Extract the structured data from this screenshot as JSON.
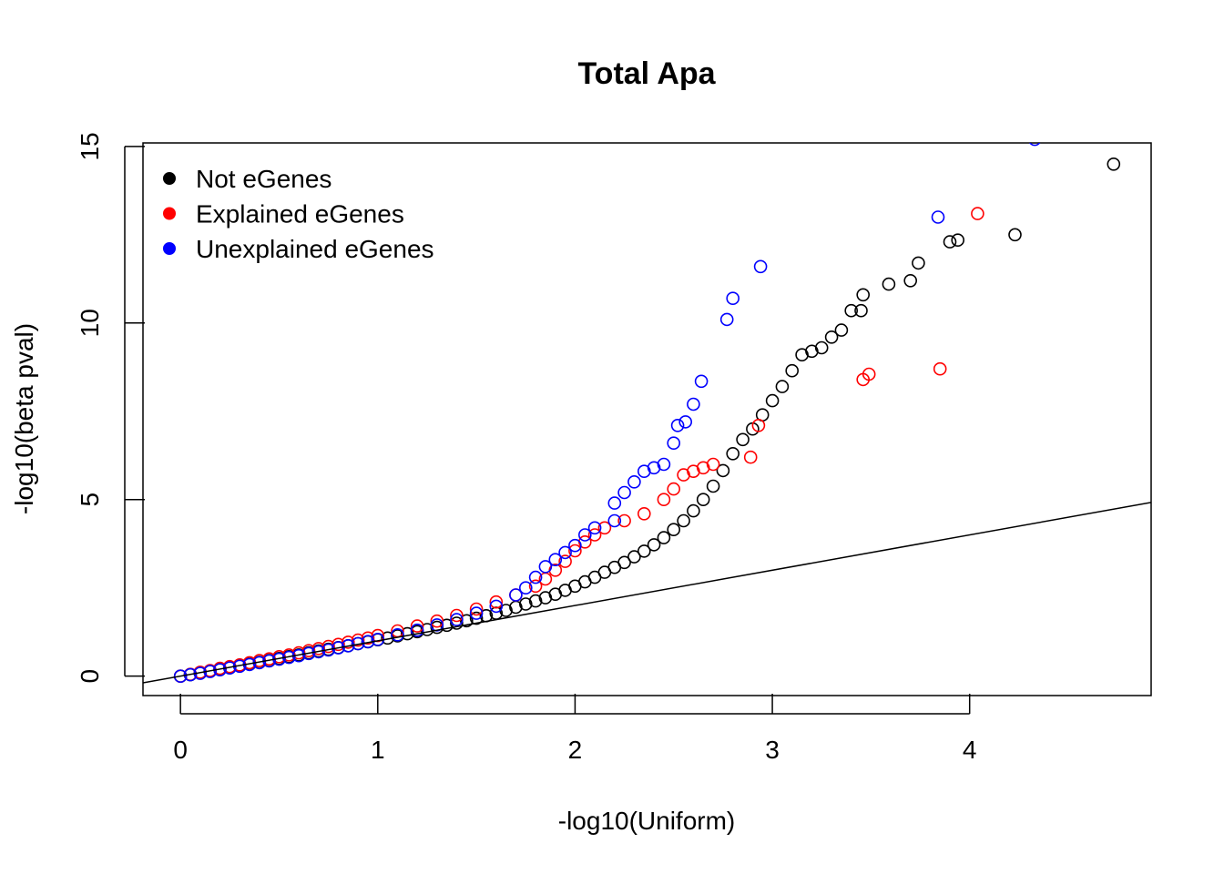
{
  "chart_data": {
    "type": "scatter",
    "title": "Total Apa",
    "xlabel": "-log10(Uniform)",
    "ylabel": "-log10(beta pval)",
    "xlim": [
      -0.19,
      4.92
    ],
    "ylim": [
      -0.55,
      15.1
    ],
    "x_ticks": [
      0,
      1,
      2,
      3,
      4
    ],
    "y_ticks": [
      0,
      5,
      10,
      15
    ],
    "x_tick_labels": [
      "0",
      "1",
      "2",
      "3",
      "4"
    ],
    "y_tick_labels": [
      "0",
      "5",
      "10",
      "15"
    ],
    "grid": false,
    "legend_position": "top-left",
    "reference_line": {
      "intercept": 0,
      "slope": 1,
      "color": "#000000"
    },
    "series": [
      {
        "name": "Not eGenes",
        "color": "#000000",
        "marker": "open-circle",
        "points": [
          [
            0.0,
            0.0
          ],
          [
            0.05,
            0.04
          ],
          [
            0.1,
            0.09
          ],
          [
            0.15,
            0.14
          ],
          [
            0.2,
            0.19
          ],
          [
            0.25,
            0.24
          ],
          [
            0.3,
            0.29
          ],
          [
            0.35,
            0.34
          ],
          [
            0.4,
            0.39
          ],
          [
            0.45,
            0.44
          ],
          [
            0.5,
            0.5
          ],
          [
            0.55,
            0.55
          ],
          [
            0.6,
            0.6
          ],
          [
            0.65,
            0.66
          ],
          [
            0.7,
            0.71
          ],
          [
            0.75,
            0.76
          ],
          [
            0.8,
            0.81
          ],
          [
            0.85,
            0.86
          ],
          [
            0.9,
            0.92
          ],
          [
            0.95,
            0.97
          ],
          [
            1.0,
            1.03
          ],
          [
            1.05,
            1.08
          ],
          [
            1.1,
            1.14
          ],
          [
            1.15,
            1.2
          ],
          [
            1.2,
            1.26
          ],
          [
            1.25,
            1.32
          ],
          [
            1.3,
            1.38
          ],
          [
            1.35,
            1.44
          ],
          [
            1.4,
            1.5
          ],
          [
            1.45,
            1.57
          ],
          [
            1.5,
            1.64
          ],
          [
            1.55,
            1.71
          ],
          [
            1.6,
            1.78
          ],
          [
            1.65,
            1.86
          ],
          [
            1.7,
            1.95
          ],
          [
            1.75,
            2.04
          ],
          [
            1.8,
            2.13
          ],
          [
            1.85,
            2.22
          ],
          [
            1.9,
            2.32
          ],
          [
            1.95,
            2.43
          ],
          [
            2.0,
            2.55
          ],
          [
            2.05,
            2.67
          ],
          [
            2.1,
            2.8
          ],
          [
            2.15,
            2.94
          ],
          [
            2.2,
            3.08
          ],
          [
            2.25,
            3.22
          ],
          [
            2.3,
            3.38
          ],
          [
            2.35,
            3.54
          ],
          [
            2.4,
            3.72
          ],
          [
            2.45,
            3.92
          ],
          [
            2.5,
            4.15
          ],
          [
            2.55,
            4.4
          ],
          [
            2.6,
            4.68
          ],
          [
            2.65,
            5.0
          ],
          [
            2.7,
            5.38
          ],
          [
            2.75,
            5.82
          ],
          [
            2.8,
            6.3
          ],
          [
            2.85,
            6.7
          ],
          [
            2.9,
            7.0
          ],
          [
            2.95,
            7.4
          ],
          [
            3.0,
            7.8
          ],
          [
            3.05,
            8.2
          ],
          [
            3.1,
            8.65
          ],
          [
            3.15,
            9.1
          ],
          [
            3.2,
            9.2
          ],
          [
            3.25,
            9.3
          ],
          [
            3.3,
            9.6
          ],
          [
            3.35,
            9.8
          ],
          [
            3.4,
            10.35
          ],
          [
            3.45,
            10.35
          ],
          [
            3.46,
            10.8
          ],
          [
            3.59,
            11.1
          ],
          [
            3.7,
            11.2
          ],
          [
            3.74,
            11.7
          ],
          [
            3.9,
            12.3
          ],
          [
            3.94,
            12.35
          ],
          [
            4.23,
            12.5
          ],
          [
            4.73,
            14.5
          ]
        ]
      },
      {
        "name": "Explained eGenes",
        "color": "#ff0000",
        "marker": "open-circle",
        "points": [
          [
            0.0,
            0.0
          ],
          [
            0.05,
            0.05
          ],
          [
            0.1,
            0.11
          ],
          [
            0.15,
            0.16
          ],
          [
            0.2,
            0.22
          ],
          [
            0.25,
            0.27
          ],
          [
            0.3,
            0.32
          ],
          [
            0.35,
            0.38
          ],
          [
            0.4,
            0.44
          ],
          [
            0.45,
            0.49
          ],
          [
            0.5,
            0.55
          ],
          [
            0.55,
            0.6
          ],
          [
            0.6,
            0.66
          ],
          [
            0.65,
            0.72
          ],
          [
            0.7,
            0.78
          ],
          [
            0.75,
            0.84
          ],
          [
            0.8,
            0.9
          ],
          [
            0.85,
            0.96
          ],
          [
            0.9,
            1.02
          ],
          [
            0.95,
            1.08
          ],
          [
            1.0,
            1.15
          ],
          [
            1.1,
            1.28
          ],
          [
            1.2,
            1.42
          ],
          [
            1.3,
            1.56
          ],
          [
            1.4,
            1.72
          ],
          [
            1.5,
            1.9
          ],
          [
            1.6,
            2.1
          ],
          [
            1.7,
            2.3
          ],
          [
            1.8,
            2.55
          ],
          [
            1.85,
            2.75
          ],
          [
            1.9,
            3.0
          ],
          [
            1.95,
            3.25
          ],
          [
            2.0,
            3.55
          ],
          [
            2.05,
            3.8
          ],
          [
            2.1,
            4.0
          ],
          [
            2.15,
            4.2
          ],
          [
            2.25,
            4.4
          ],
          [
            2.35,
            4.6
          ],
          [
            2.45,
            5.0
          ],
          [
            2.5,
            5.3
          ],
          [
            2.55,
            5.7
          ],
          [
            2.6,
            5.8
          ],
          [
            2.65,
            5.9
          ],
          [
            2.7,
            6.0
          ],
          [
            2.89,
            6.2
          ],
          [
            2.93,
            7.1
          ],
          [
            3.46,
            8.4
          ],
          [
            3.49,
            8.55
          ],
          [
            3.85,
            8.7
          ],
          [
            4.04,
            13.1
          ]
        ]
      },
      {
        "name": "Unexplained eGenes",
        "color": "#0000ff",
        "marker": "open-circle",
        "points": [
          [
            0.0,
            0.0
          ],
          [
            0.05,
            0.04
          ],
          [
            0.1,
            0.08
          ],
          [
            0.15,
            0.13
          ],
          [
            0.2,
            0.18
          ],
          [
            0.25,
            0.23
          ],
          [
            0.3,
            0.28
          ],
          [
            0.35,
            0.33
          ],
          [
            0.4,
            0.38
          ],
          [
            0.45,
            0.43
          ],
          [
            0.5,
            0.48
          ],
          [
            0.55,
            0.53
          ],
          [
            0.6,
            0.58
          ],
          [
            0.65,
            0.64
          ],
          [
            0.7,
            0.69
          ],
          [
            0.75,
            0.74
          ],
          [
            0.8,
            0.8
          ],
          [
            0.85,
            0.86
          ],
          [
            0.9,
            0.92
          ],
          [
            0.95,
            0.98
          ],
          [
            1.0,
            1.04
          ],
          [
            1.1,
            1.17
          ],
          [
            1.2,
            1.3
          ],
          [
            1.3,
            1.45
          ],
          [
            1.4,
            1.6
          ],
          [
            1.5,
            1.78
          ],
          [
            1.6,
            1.98
          ],
          [
            1.7,
            2.3
          ],
          [
            1.75,
            2.5
          ],
          [
            1.8,
            2.8
          ],
          [
            1.85,
            3.1
          ],
          [
            1.9,
            3.3
          ],
          [
            1.95,
            3.5
          ],
          [
            2.0,
            3.7
          ],
          [
            2.05,
            4.0
          ],
          [
            2.1,
            4.2
          ],
          [
            2.2,
            4.4
          ],
          [
            2.2,
            4.9
          ],
          [
            2.25,
            5.2
          ],
          [
            2.3,
            5.5
          ],
          [
            2.35,
            5.8
          ],
          [
            2.4,
            5.9
          ],
          [
            2.45,
            6.0
          ],
          [
            2.5,
            6.6
          ],
          [
            2.52,
            7.1
          ],
          [
            2.56,
            7.2
          ],
          [
            2.6,
            7.7
          ],
          [
            2.64,
            8.35
          ],
          [
            2.77,
            10.1
          ],
          [
            2.8,
            10.7
          ],
          [
            2.94,
            11.6
          ],
          [
            3.84,
            13.0
          ],
          [
            4.33,
            15.2
          ]
        ]
      }
    ]
  }
}
